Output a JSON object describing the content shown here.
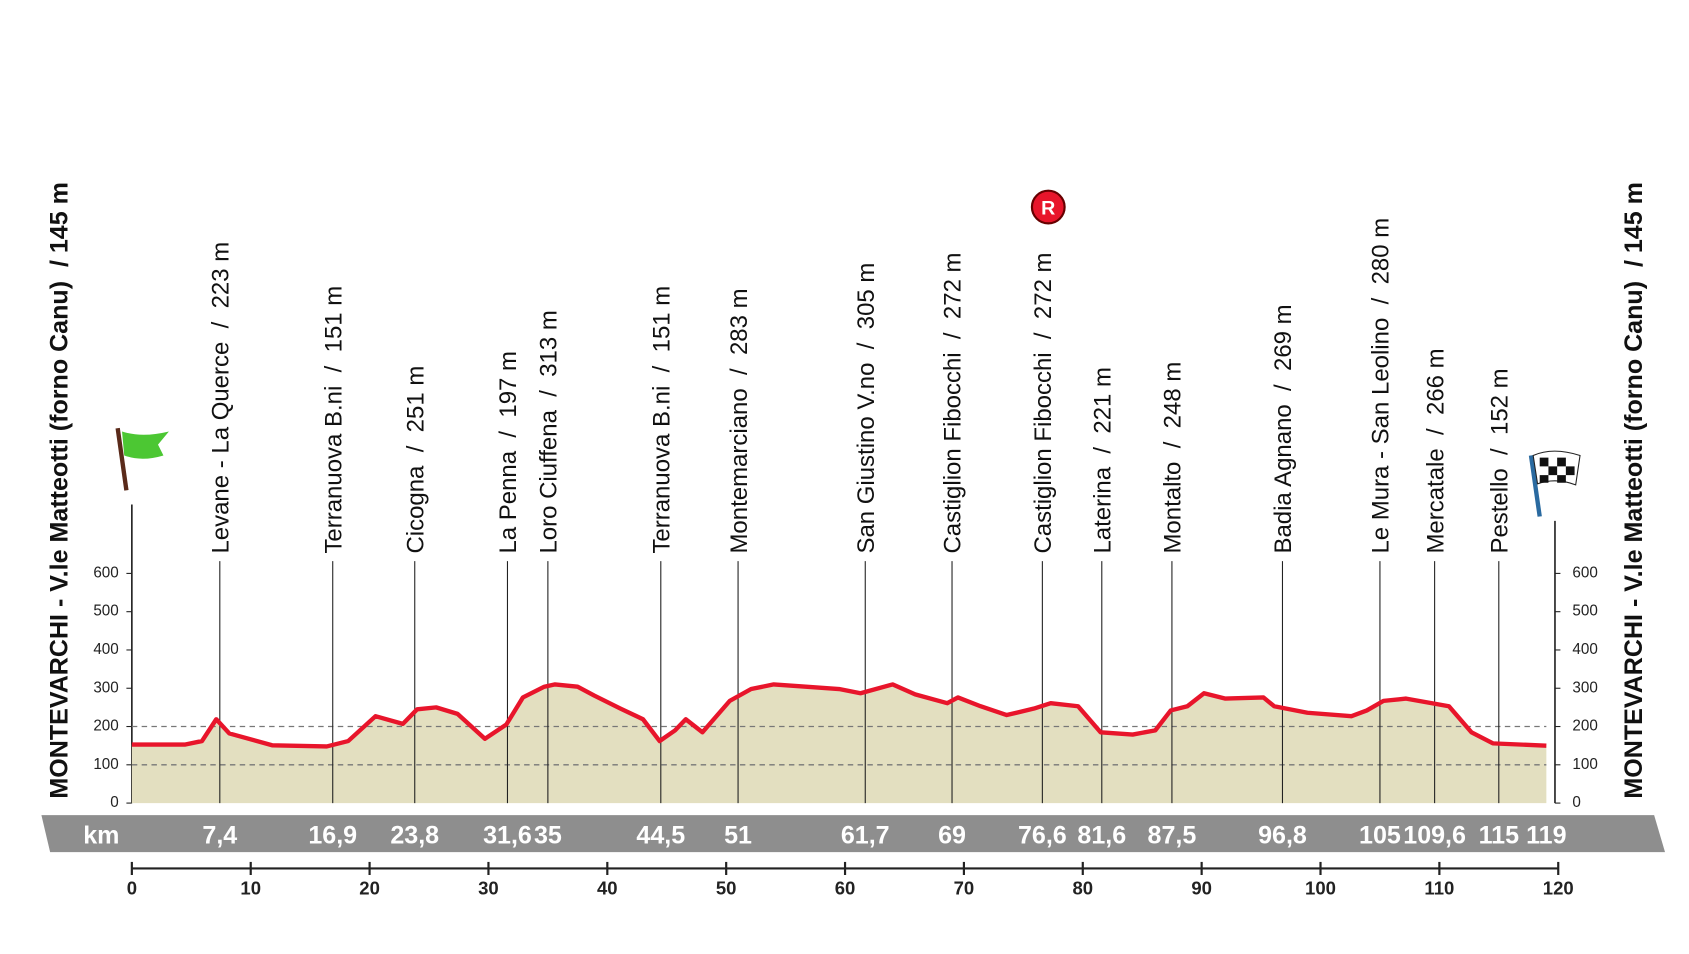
{
  "chart_data": {
    "type": "line",
    "start_label": "MONTEVARCHI - V.le Matteotti (forno Canu)  / 145 m",
    "finish_label": "MONTEVARCHI - V.le Matteotti (forno Canu)  / 145 m",
    "km_label": "km",
    "feed_zone_label": "R",
    "x": [
      0,
      4.5,
      5.9,
      7.1,
      8.2,
      11.8,
      16.4,
      18.2,
      20.5,
      22.8,
      24,
      25.6,
      27.4,
      29.7,
      31.5,
      32.9,
      34.7,
      35.6,
      37.5,
      38.9,
      41.1,
      43,
      44.4,
      45.7,
      46.6,
      48,
      50.3,
      52.1,
      54,
      56.7,
      59.5,
      61.3,
      64,
      65.9,
      68.6,
      69.5,
      71.4,
      73.6,
      75.9,
      77.3,
      79.6,
      81.5,
      84.2,
      86.1,
      87.4,
      88.8,
      90.2,
      92,
      95.2,
      96.1,
      98.9,
      102.6,
      103.9,
      105.3,
      107.2,
      110.8,
      112.7,
      114.5,
      119
    ],
    "values": [
      153,
      153,
      162,
      219,
      182,
      151,
      148,
      162,
      227,
      207,
      245,
      250,
      233,
      168,
      205,
      276,
      304,
      310,
      304,
      281,
      247,
      219,
      162,
      190,
      219,
      185,
      267,
      298,
      310,
      304,
      298,
      287,
      310,
      284,
      261,
      276,
      253,
      230,
      247,
      261,
      253,
      185,
      179,
      190,
      242,
      253,
      287,
      273,
      276,
      253,
      236,
      227,
      242,
      267,
      273,
      253,
      185,
      156,
      150
    ],
    "line_color": "#e8152b",
    "fill_color": "#e3dfc0",
    "xlim": [
      0,
      120
    ],
    "xticks": [
      0,
      10,
      20,
      30,
      40,
      50,
      60,
      70,
      80,
      90,
      100,
      110,
      120
    ],
    "ylim": [
      0,
      780
    ],
    "yticks": [
      0,
      100,
      200,
      300,
      400,
      500,
      600
    ],
    "dashed_gridlines": [
      100,
      200
    ],
    "waypoints": [
      {
        "name": "Levane - La Querce  /  223 m",
        "km": {
          "value": 7.4,
          "label": "7,4"
        }
      },
      {
        "name": "Terranuova B.ni  /  151 m",
        "km": {
          "value": 16.9,
          "label": "16,9"
        }
      },
      {
        "name": "Cicogna  /  251 m",
        "km": {
          "value": 23.8,
          "label": "23,8"
        }
      },
      {
        "name": "La Penna  /  197 m",
        "km": {
          "value": 31.6,
          "label": "31,6"
        }
      },
      {
        "name": "Loro Ciuffena  /  313 m",
        "km": 35
      },
      {
        "name": "Terranuova B.ni  /  151 m",
        "km": {
          "value": 44.5,
          "label": "44,5"
        }
      },
      {
        "name": "Montemarciano  /  283 m",
        "km": 51
      },
      {
        "name": "San Giustino V.no  /  305 m",
        "km": {
          "value": 61.7,
          "label": "61,7"
        }
      },
      {
        "name": "Castiglion Fibocchi  /  272 m",
        "km": 69
      },
      {
        "name": "Castiglion Fibocchi  /  272 m",
        "km": {
          "value": 76.6,
          "label": "76,6"
        }
      },
      {
        "name": "Laterina  /  221 m",
        "km": {
          "value": 81.6,
          "label": "81,6"
        }
      },
      {
        "name": "Montalto  /  248 m",
        "km": {
          "value": 87.5,
          "label": "87,5"
        }
      },
      {
        "name": "Badia Agnano  /  269 m",
        "km": {
          "value": 96.8,
          "label": "96,8"
        }
      },
      {
        "name": "Le Mura - San Leolino  /  280 m",
        "km": 105
      },
      {
        "name": "Mercatale  /  266 m",
        "km": {
          "value": 109.6,
          "label": "109,6"
        }
      },
      {
        "name": "Pestello  /  152 m",
        "km": 115
      }
    ],
    "finish_km": 119
  }
}
